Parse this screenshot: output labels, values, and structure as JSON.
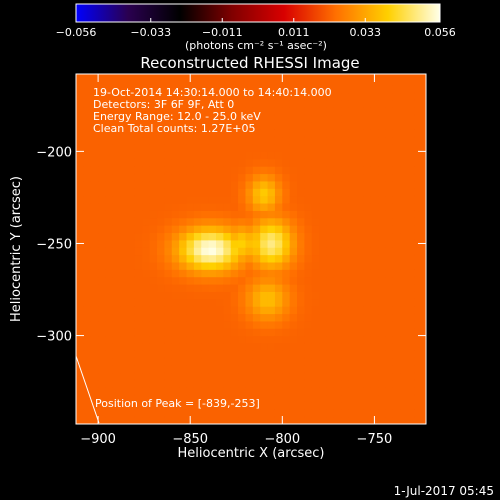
{
  "chart_data": {
    "type": "heatmap",
    "title": "Reconstructed RHESSI Image",
    "xlabel": "Heliocentric X (arcsec)",
    "ylabel": "Heliocentric Y (arcsec)",
    "xlim": [
      -912,
      -722
    ],
    "ylim": [
      -348,
      -158
    ],
    "x_ticks": [
      -900,
      -850,
      -800,
      -750
    ],
    "y_ticks": [
      -200,
      -250,
      -300
    ],
    "x_tick_labels": [
      "−900",
      "−850",
      "−800",
      "−750"
    ],
    "y_tick_labels": [
      "−200",
      "−250",
      "−300"
    ],
    "colorbar": {
      "min": -0.056,
      "max": 0.056,
      "ticks": [
        -0.056,
        -0.033,
        -0.011,
        0.011,
        0.033,
        0.056
      ],
      "tick_labels": [
        "−0.056",
        "−0.033",
        "−0.011",
        "0.011",
        "0.033",
        "0.056"
      ],
      "unit_label": "(photons cm⁻² s⁻¹ asec⁻²)",
      "colormap_stops": [
        "#0000ff",
        "#2a0050",
        "#000000",
        "#800000",
        "#d80000",
        "#ff7000",
        "#ffd000",
        "#ffffe8"
      ]
    },
    "background_level": 0.022,
    "sources": [
      {
        "x": -839,
        "y": -253,
        "sx": 12,
        "sy": 8,
        "peak": 0.056
      },
      {
        "x": -806,
        "y": -250,
        "sx": 8,
        "sy": 9,
        "peak": 0.049
      },
      {
        "x": -822,
        "y": -250,
        "sx": 7,
        "sy": 7,
        "peak": 0.04
      },
      {
        "x": -810,
        "y": -223,
        "sx": 6,
        "sy": 7,
        "peak": 0.039
      },
      {
        "x": -808,
        "y": -280,
        "sx": 8,
        "sy": 8,
        "peak": 0.037
      }
    ],
    "info_lines": [
      "19-Oct-2014 14:30:14.000 to 14:40:14.000",
      "Detectors: 3F 6F 9F, Att 0",
      "Energy Range: 12.0 - 25.0 keV",
      "Clean    Total counts: 1.27E+05"
    ],
    "peak_label": "Position of Peak = [-839,-253]",
    "peak_position": {
      "x": -839,
      "y": -253
    }
  },
  "footer": {
    "date": "1-Jul-2017 05:45"
  }
}
